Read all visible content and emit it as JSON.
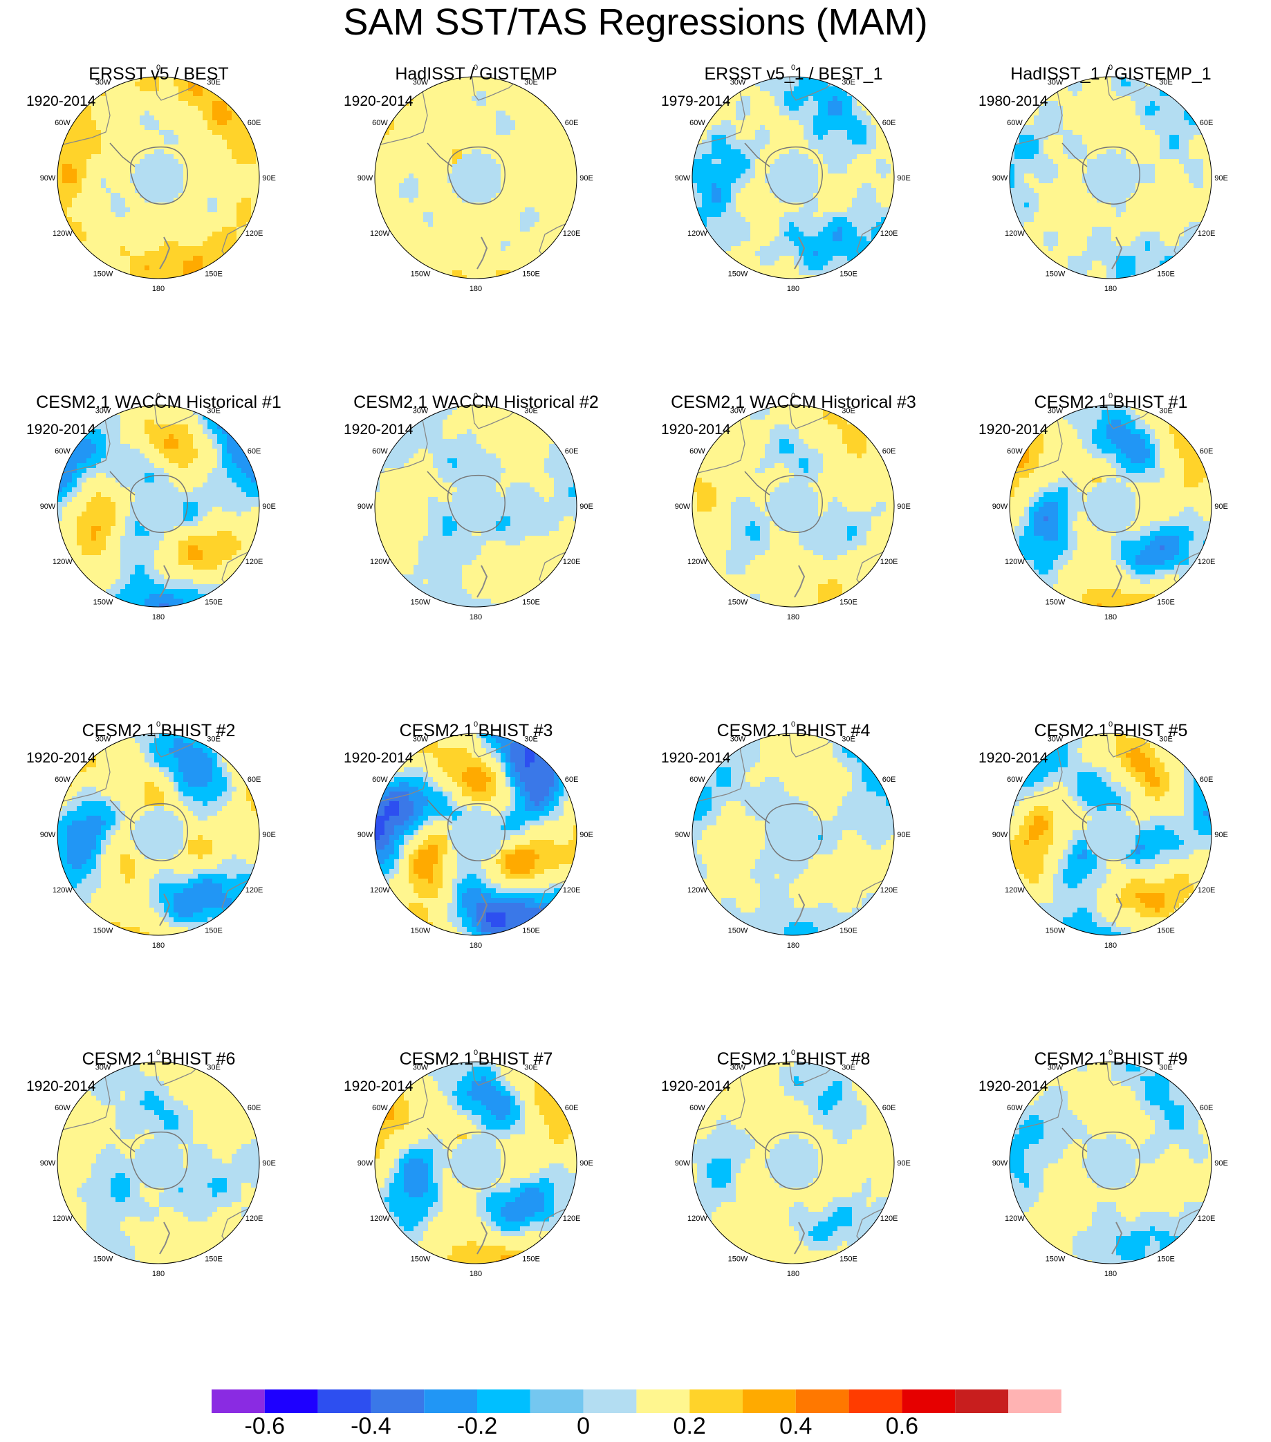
{
  "title": "SAM SST/TAS Regressions (MAM)",
  "panels": [
    {
      "title": "ERSST v5 / BEST",
      "years": "1920-2014",
      "profile": "obs1"
    },
    {
      "title": "HadISST / GISTEMP",
      "years": "1920-2014",
      "profile": "obs2"
    },
    {
      "title": "ERSST v5_1 / BEST_1",
      "years": "1979-2014",
      "profile": "obs3"
    },
    {
      "title": "HadISST_1 / GISTEMP_1",
      "years": "1980-2014",
      "profile": "obs4"
    },
    {
      "title": "CESM2.1 WACCM Historical #1",
      "years": "1920-2014",
      "profile": "model_strong"
    },
    {
      "title": "CESM2.1 WACCM Historical #2",
      "years": "1920-2014",
      "profile": "model_weak"
    },
    {
      "title": "CESM2.1 WACCM Historical #3",
      "years": "1920-2014",
      "profile": "model_mixed"
    },
    {
      "title": "CESM2.1 BHIST #1",
      "years": "1920-2014",
      "profile": "model_strong"
    },
    {
      "title": "CESM2.1 BHIST #2",
      "years": "1920-2014",
      "profile": "model_strong"
    },
    {
      "title": "CESM2.1 BHIST #3",
      "years": "1920-2014",
      "profile": "model_extreme"
    },
    {
      "title": "CESM2.1 BHIST #4",
      "years": "1920-2014",
      "profile": "model_weak"
    },
    {
      "title": "CESM2.1 BHIST #5",
      "years": "1920-2014",
      "profile": "model_strong"
    },
    {
      "title": "CESM2.1 BHIST #6",
      "years": "1920-2014",
      "profile": "model_weak"
    },
    {
      "title": "CESM2.1 BHIST #7",
      "years": "1920-2014",
      "profile": "model_strong"
    },
    {
      "title": "CESM2.1 BHIST #8",
      "years": "1920-2014",
      "profile": "model_mixed"
    },
    {
      "title": "CESM2.1 BHIST #9",
      "years": "1920-2014",
      "profile": "model_weak"
    }
  ],
  "longitude_labels": [
    "0",
    "30E",
    "60E",
    "90E",
    "120E",
    "150E",
    "180",
    "150W",
    "120W",
    "90W",
    "60W",
    "30W"
  ],
  "colorbar": {
    "colors": [
      "#8a2be2",
      "#1e00ff",
      "#2d4ff0",
      "#3a78e8",
      "#2196f5",
      "#00bfff",
      "#74c7f0",
      "#b3ddf2",
      "#fff68f",
      "#ffd32a",
      "#ffaa00",
      "#ff7800",
      "#ff3c00",
      "#e60000",
      "#c81e1e",
      "#ffb3b3"
    ],
    "tick_values": [
      "-0.6",
      "-0.4",
      "-0.2",
      "0",
      "0.2",
      "0.4",
      "0.6"
    ],
    "step": 0.1
  }
}
